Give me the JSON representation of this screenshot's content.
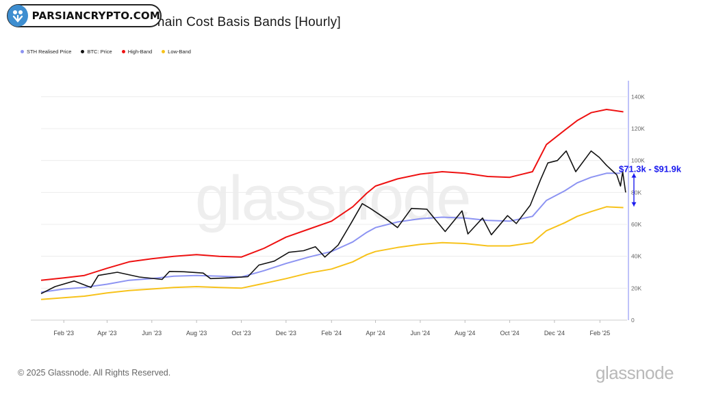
{
  "header": {
    "title": "itcoin: Short-Term On-chain Cost Basis Bands [Hourly]",
    "badge_text": "PARSIANCRYPTO.COM"
  },
  "watermark": "glassnode",
  "footer": {
    "copyright": "© 2025 Glassnode. All Rights Reserved.",
    "logo_text": "glassnode"
  },
  "chart_data": {
    "type": "line",
    "title": "itcoin: Short-Term On-chain Cost Basis Bands [Hourly]",
    "xlabel": "",
    "ylabel": "",
    "x_range": [
      "2023-01-01",
      "2025-03-10"
    ],
    "ylim": [
      0,
      150000
    ],
    "y_ticks": [
      0,
      20000,
      40000,
      60000,
      80000,
      100000,
      120000,
      140000
    ],
    "y_tick_labels": [
      "0",
      "20K",
      "40K",
      "60K",
      "80K",
      "100K",
      "120K",
      "140K"
    ],
    "x_ticks": [
      "2023-02-01",
      "2023-04-01",
      "2023-06-01",
      "2023-08-01",
      "2023-10-01",
      "2023-12-01",
      "2024-02-01",
      "2024-04-01",
      "2024-06-01",
      "2024-08-01",
      "2024-10-01",
      "2024-12-01",
      "2025-02-01"
    ],
    "x_tick_labels": [
      "Feb '23",
      "Apr '23",
      "Jun '23",
      "Aug '23",
      "Oct '23",
      "Dec '23",
      "Feb '24",
      "Apr '24",
      "Jun '24",
      "Aug '24",
      "Oct '24",
      "Dec '24",
      "Feb '25"
    ],
    "grid": true,
    "legend_position": "top-left",
    "series": [
      {
        "name": "STH Realised Price",
        "color": "#8c93f2",
        "points": [
          [
            "2023-01-01",
            17500
          ],
          [
            "2023-02-01",
            19500
          ],
          [
            "2023-03-01",
            20500
          ],
          [
            "2023-04-01",
            22500
          ],
          [
            "2023-05-01",
            25000
          ],
          [
            "2023-06-01",
            26000
          ],
          [
            "2023-07-01",
            27500
          ],
          [
            "2023-08-01",
            28000
          ],
          [
            "2023-09-01",
            27500
          ],
          [
            "2023-10-01",
            27000
          ],
          [
            "2023-11-01",
            31000
          ],
          [
            "2023-12-01",
            35500
          ],
          [
            "2024-01-01",
            39500
          ],
          [
            "2024-02-01",
            43000
          ],
          [
            "2024-03-01",
            49000
          ],
          [
            "2024-03-20",
            55000
          ],
          [
            "2024-04-01",
            58000
          ],
          [
            "2024-05-01",
            61500
          ],
          [
            "2024-06-01",
            63500
          ],
          [
            "2024-07-01",
            64500
          ],
          [
            "2024-08-01",
            64000
          ],
          [
            "2024-09-01",
            62500
          ],
          [
            "2024-10-01",
            62000
          ],
          [
            "2024-11-01",
            65000
          ],
          [
            "2024-11-20",
            75000
          ],
          [
            "2024-12-15",
            81000
          ],
          [
            "2025-01-01",
            86000
          ],
          [
            "2025-01-20",
            89500
          ],
          [
            "2025-02-10",
            92000
          ],
          [
            "2025-03-01",
            92000
          ]
        ]
      },
      {
        "name": "BTC: Price",
        "color": "#111111",
        "points": [
          [
            "2023-01-01",
            16600
          ],
          [
            "2023-01-20",
            21000
          ],
          [
            "2023-02-15",
            24500
          ],
          [
            "2023-03-10",
            20500
          ],
          [
            "2023-03-20",
            28000
          ],
          [
            "2023-04-15",
            30000
          ],
          [
            "2023-05-15",
            27000
          ],
          [
            "2023-06-15",
            25500
          ],
          [
            "2023-06-25",
            30500
          ],
          [
            "2023-07-15",
            30300
          ],
          [
            "2023-08-10",
            29500
          ],
          [
            "2023-08-20",
            26000
          ],
          [
            "2023-09-15",
            26500
          ],
          [
            "2023-10-10",
            27200
          ],
          [
            "2023-10-25",
            34500
          ],
          [
            "2023-11-15",
            37000
          ],
          [
            "2023-12-05",
            42500
          ],
          [
            "2023-12-25",
            43500
          ],
          [
            "2024-01-10",
            46000
          ],
          [
            "2024-01-23",
            39500
          ],
          [
            "2024-02-10",
            47000
          ],
          [
            "2024-02-28",
            61000
          ],
          [
            "2024-03-14",
            73000
          ],
          [
            "2024-03-25",
            70000
          ],
          [
            "2024-04-15",
            63500
          ],
          [
            "2024-05-01",
            58000
          ],
          [
            "2024-05-20",
            70000
          ],
          [
            "2024-06-10",
            69500
          ],
          [
            "2024-07-05",
            55500
          ],
          [
            "2024-07-28",
            68500
          ],
          [
            "2024-08-05",
            54000
          ],
          [
            "2024-08-25",
            64000
          ],
          [
            "2024-09-06",
            53500
          ],
          [
            "2024-09-28",
            65500
          ],
          [
            "2024-10-10",
            60500
          ],
          [
            "2024-10-29",
            72000
          ],
          [
            "2024-11-12",
            88000
          ],
          [
            "2024-11-22",
            98500
          ],
          [
            "2024-12-05",
            100000
          ],
          [
            "2024-12-17",
            106000
          ],
          [
            "2024-12-30",
            93000
          ],
          [
            "2025-01-20",
            106000
          ],
          [
            "2025-01-31",
            102000
          ],
          [
            "2025-02-10",
            97000
          ],
          [
            "2025-02-24",
            91000
          ],
          [
            "2025-03-01",
            84000
          ],
          [
            "2025-03-04",
            93000
          ],
          [
            "2025-03-08",
            80000
          ]
        ]
      },
      {
        "name": "High-Band",
        "color": "#ee1111",
        "points": [
          [
            "2023-01-01",
            25000
          ],
          [
            "2023-02-01",
            26500
          ],
          [
            "2023-03-01",
            28000
          ],
          [
            "2023-04-01",
            32500
          ],
          [
            "2023-05-01",
            36500
          ],
          [
            "2023-06-01",
            38500
          ],
          [
            "2023-07-01",
            40000
          ],
          [
            "2023-08-01",
            41000
          ],
          [
            "2023-09-01",
            40000
          ],
          [
            "2023-10-01",
            39500
          ],
          [
            "2023-11-01",
            45000
          ],
          [
            "2023-12-01",
            52000
          ],
          [
            "2024-01-01",
            57000
          ],
          [
            "2024-02-01",
            62000
          ],
          [
            "2024-03-01",
            71000
          ],
          [
            "2024-03-20",
            79500
          ],
          [
            "2024-04-01",
            84000
          ],
          [
            "2024-05-01",
            88500
          ],
          [
            "2024-06-01",
            91500
          ],
          [
            "2024-07-01",
            93000
          ],
          [
            "2024-08-01",
            92000
          ],
          [
            "2024-09-01",
            90000
          ],
          [
            "2024-10-01",
            89500
          ],
          [
            "2024-11-01",
            93000
          ],
          [
            "2024-11-20",
            110000
          ],
          [
            "2024-12-15",
            119000
          ],
          [
            "2025-01-01",
            125000
          ],
          [
            "2025-01-20",
            130000
          ],
          [
            "2025-02-10",
            132000
          ],
          [
            "2025-03-05",
            130500
          ]
        ]
      },
      {
        "name": "Low-Band",
        "color": "#f7c21a",
        "points": [
          [
            "2023-01-01",
            13000
          ],
          [
            "2023-02-01",
            14000
          ],
          [
            "2023-03-01",
            15000
          ],
          [
            "2023-04-01",
            17000
          ],
          [
            "2023-05-01",
            18500
          ],
          [
            "2023-06-01",
            19500
          ],
          [
            "2023-07-01",
            20500
          ],
          [
            "2023-08-01",
            21000
          ],
          [
            "2023-09-01",
            20500
          ],
          [
            "2023-10-01",
            20000
          ],
          [
            "2023-11-01",
            23000
          ],
          [
            "2023-12-01",
            26000
          ],
          [
            "2024-01-01",
            29500
          ],
          [
            "2024-02-01",
            32000
          ],
          [
            "2024-03-01",
            36500
          ],
          [
            "2024-03-20",
            41000
          ],
          [
            "2024-04-01",
            43000
          ],
          [
            "2024-05-01",
            45500
          ],
          [
            "2024-06-01",
            47500
          ],
          [
            "2024-07-01",
            48500
          ],
          [
            "2024-08-01",
            48000
          ],
          [
            "2024-09-01",
            46500
          ],
          [
            "2024-10-01",
            46500
          ],
          [
            "2024-11-01",
            48500
          ],
          [
            "2024-11-20",
            56000
          ],
          [
            "2024-12-15",
            61000
          ],
          [
            "2025-01-01",
            65000
          ],
          [
            "2025-01-20",
            68000
          ],
          [
            "2025-02-10",
            71000
          ],
          [
            "2025-03-05",
            70500
          ]
        ]
      }
    ],
    "annotations": [
      {
        "text": "$71.3k - $91.9k",
        "color": "#1a1aee",
        "x": "2025-03-10",
        "from": 71300,
        "to": 91900
      }
    ]
  }
}
